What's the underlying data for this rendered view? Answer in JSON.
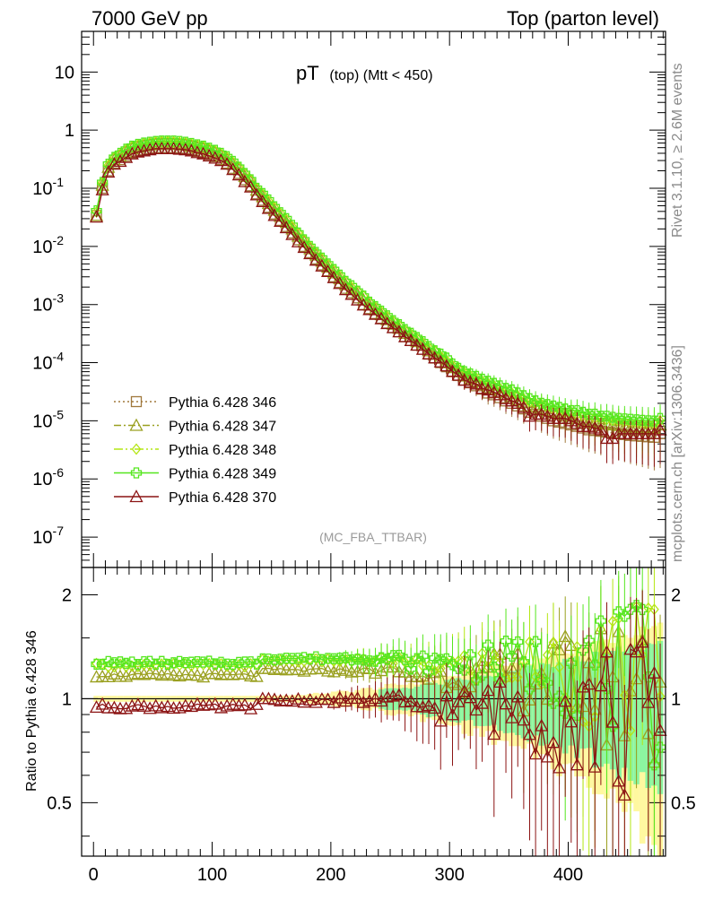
{
  "header": {
    "left": "7000 GeV pp",
    "right": "Top (parton level)"
  },
  "plot_title": {
    "main": "pT",
    "sub": "(top) (Mtt < 450)"
  },
  "analysis_tag": "(MC_FBA_TTBAR)",
  "side_labels": {
    "rivet": "Rivet 3.1.10, ≥ 2.6M events",
    "mcplots": "mcplots.cern.ch [arXiv:1306.3436]"
  },
  "chart_data": [
    {
      "type": "line",
      "panel": "main",
      "yscale": "log",
      "xlim": [
        -10,
        482
      ],
      "ylim": [
        3e-08,
        50
      ],
      "y_tick_labels": [
        "10",
        "1",
        "10^-1",
        "10^-2",
        "10^-3",
        "10^-4",
        "10^-5",
        "10^-6",
        "10^-7"
      ],
      "legend_position": "middle-left",
      "x": [
        2.5,
        7.5,
        12.5,
        17.5,
        22.5,
        27.5,
        32.5,
        37.5,
        42.5,
        47.5,
        52.5,
        57.5,
        62.5,
        67.5,
        72.5,
        77.5,
        82.5,
        87.5,
        92.5,
        97.5,
        102.5,
        107.5,
        112.5,
        117.5,
        122.5,
        127.5,
        132.5,
        137.5,
        142.5,
        147.5,
        152.5,
        157.5,
        162.5,
        167.5,
        172.5,
        177.5,
        182.5,
        187.5,
        192.5,
        197.5,
        202.5,
        207.5,
        212.5,
        217.5,
        222.5,
        227.5,
        232.5,
        237.5,
        242.5,
        247.5,
        252.5,
        257.5,
        262.5,
        267.5,
        272.5,
        277.5,
        282.5,
        287.5,
        292.5,
        297.5,
        302.5,
        307.5,
        312.5,
        317.5,
        322.5,
        327.5,
        332.5,
        337.5,
        342.5,
        347.5,
        352.5,
        357.5,
        362.5,
        367.5,
        372.5,
        377.5,
        382.5,
        387.5,
        392.5,
        397.5,
        402.5,
        407.5,
        412.5,
        417.5,
        422.5,
        427.5,
        432.5,
        437.5,
        442.5,
        447.5,
        452.5,
        457.5,
        462.5,
        467.5,
        472.5,
        477.5
      ],
      "series": [
        {
          "name": "Pythia 6.428 346",
          "color": "#a0783c",
          "dash": "2,3",
          "marker": "square",
          "values": [
            0.034,
            0.1,
            0.2,
            0.27,
            0.31,
            0.36,
            0.41,
            0.44,
            0.46,
            0.48,
            0.5,
            0.5,
            0.5,
            0.5,
            0.49,
            0.48,
            0.46,
            0.43,
            0.41,
            0.38,
            0.35,
            0.31,
            0.27,
            0.22,
            0.18,
            0.14,
            0.11,
            0.08,
            0.062,
            0.047,
            0.036,
            0.028,
            0.022,
            0.017,
            0.013,
            0.01,
            0.0078,
            0.0061,
            0.0048,
            0.0038,
            0.003,
            0.0024,
            0.0019,
            0.0016,
            0.0013,
            0.001,
            0.00085,
            0.0007,
            0.00058,
            0.00048,
            0.0004,
            0.00034,
            0.00028,
            0.00024,
            0.0002,
            0.00017,
            0.00014,
            0.00012,
            0.0001,
            8.5e-05,
            7e-05,
            6e-05,
            5e-05,
            4.5e-05,
            4e-05,
            3.5e-05,
            3e-05,
            2.8e-05,
            2.5e-05,
            2.2e-05,
            2e-05,
            1.8e-05,
            1.6e-05,
            1.4e-05,
            1.3e-05,
            1.2e-05,
            1.1e-05,
            1e-05,
            9.5e-06,
            9e-06,
            8.5e-06,
            8e-06,
            7.5e-06,
            7e-06,
            6.8e-06,
            6.6e-06,
            6.4e-06,
            6.2e-06,
            6e-06,
            5.8e-06,
            5.6e-06,
            5.5e-06,
            5.4e-06,
            5.3e-06,
            5.2e-06,
            6e-06
          ]
        },
        {
          "name": "Pythia 6.428 347",
          "color": "#9aa020",
          "dash": "8,3,2,3",
          "marker": "triangle",
          "values": [
            0.034,
            0.113,
            0.23,
            0.31,
            0.36,
            0.42,
            0.48,
            0.51,
            0.54,
            0.56,
            0.58,
            0.58,
            0.58,
            0.58,
            0.57,
            0.56,
            0.53,
            0.5,
            0.48,
            0.44,
            0.41,
            0.36,
            0.31,
            0.26,
            0.21,
            0.16,
            0.13,
            0.093,
            0.072,
            0.055,
            0.042,
            0.033,
            0.026,
            0.02,
            0.015,
            0.012,
            0.0091,
            0.0071,
            0.0056,
            0.0044,
            0.0035,
            0.0028,
            0.0022,
            0.0018,
            0.0015,
            0.0012,
            0.00098,
            0.00081,
            0.00067,
            0.00055,
            0.00046,
            0.00039,
            0.00032,
            0.00028,
            0.00023,
            0.0002,
            0.00016,
            0.00014,
            0.00012,
            0.0001,
            8.2e-05,
            7e-05,
            5.9e-05,
            5.3e-05,
            4.8e-05,
            4.2e-05,
            3.7e-05,
            3.5e-05,
            3.1e-05,
            2.8e-05,
            2.6e-05,
            2.3e-05,
            2.1e-05,
            1.8e-05,
            1.7e-05,
            1.6e-05,
            1.5e-05,
            1.4e-05,
            1.3e-05,
            1.2e-05,
            1.1e-05,
            1.1e-05,
            1e-05,
            9.5e-06,
            9.3e-06,
            9e-06,
            8.8e-06,
            8.5e-06,
            8.3e-06,
            8e-06,
            7.8e-06,
            7.7e-06,
            7.6e-06,
            7.5e-06,
            7.4e-06,
            8.5e-06
          ]
        },
        {
          "name": "Pythia 6.428 348",
          "color": "#b4e614",
          "dash": "10,3,2,3,2,3",
          "marker": "diamond",
          "values": [
            0.039,
            0.125,
            0.25,
            0.34,
            0.39,
            0.46,
            0.52,
            0.56,
            0.59,
            0.61,
            0.63,
            0.64,
            0.64,
            0.63,
            0.62,
            0.61,
            0.58,
            0.55,
            0.52,
            0.48,
            0.44,
            0.39,
            0.34,
            0.28,
            0.23,
            0.18,
            0.14,
            0.1,
            0.079,
            0.061,
            0.047,
            0.037,
            0.029,
            0.022,
            0.017,
            0.013,
            0.0099,
            0.0078,
            0.0062,
            0.0049,
            0.0039,
            0.0031,
            0.0025,
            0.002,
            0.0017,
            0.0014,
            0.0011,
            0.0009,
            0.00075,
            0.00062,
            0.00052,
            0.00044,
            0.00036,
            0.00031,
            0.00026,
            0.00022,
            0.00018,
            0.00016,
            0.00013,
            0.00011,
            9e-05,
            7.8e-05,
            6.7e-05,
            6e-05,
            5.4e-05,
            4.8e-05,
            4.4e-05,
            4e-05,
            3.6e-05,
            3.3e-05,
            3e-05,
            2.7e-05,
            2.4e-05,
            2.1e-05,
            2e-05,
            1.9e-05,
            1.7e-05,
            1.6e-05,
            1.5e-05,
            1.4e-05,
            1.4e-05,
            1.3e-05,
            1.2e-05,
            1.2e-05,
            1.1e-05,
            1.1e-05,
            1.05e-05,
            1e-05,
            9.8e-06,
            9.6e-06,
            9.4e-06,
            9.2e-06,
            9e-06,
            8.9e-06,
            8.8e-06,
            1e-05
          ]
        },
        {
          "name": "Pythia 6.428 349",
          "color": "#55e61e",
          "dash": "",
          "marker": "cross",
          "values": [
            0.041,
            0.126,
            0.26,
            0.34,
            0.4,
            0.47,
            0.53,
            0.57,
            0.6,
            0.62,
            0.64,
            0.65,
            0.65,
            0.65,
            0.64,
            0.62,
            0.59,
            0.56,
            0.53,
            0.49,
            0.45,
            0.4,
            0.35,
            0.29,
            0.23,
            0.18,
            0.14,
            0.1,
            0.081,
            0.063,
            0.048,
            0.038,
            0.03,
            0.023,
            0.017,
            0.013,
            0.01,
            0.0079,
            0.0063,
            0.005,
            0.004,
            0.0032,
            0.0025,
            0.0021,
            0.0017,
            0.0014,
            0.0011,
            0.00092,
            0.00077,
            0.00064,
            0.00053,
            0.00045,
            0.00037,
            0.00032,
            0.00027,
            0.00023,
            0.00019,
            0.00016,
            0.00014,
            0.00012,
            9.5e-05,
            8e-05,
            7e-05,
            6.4e-05,
            5.8e-05,
            5.2e-05,
            4.8e-05,
            4.4e-05,
            4e-05,
            3.6e-05,
            3.4e-05,
            3e-05,
            2.7e-05,
            2.4e-05,
            2.2e-05,
            2e-05,
            1.9e-05,
            1.8e-05,
            1.7e-05,
            1.6e-05,
            1.5e-05,
            1.5e-05,
            1.4e-05,
            1.3e-05,
            1.3e-05,
            1.2e-05,
            1.2e-05,
            1.15e-05,
            1.1e-05,
            1.08e-05,
            1.06e-05,
            1.04e-05,
            1.02e-05,
            1e-05,
            9.9e-06,
            1.1e-05
          ]
        },
        {
          "name": "Pythia 6.428 370",
          "color": "#8c1414",
          "dash": "",
          "marker": "triangle",
          "values": [
            0.032,
            0.094,
            0.19,
            0.26,
            0.29,
            0.34,
            0.39,
            0.42,
            0.44,
            0.46,
            0.48,
            0.48,
            0.48,
            0.48,
            0.47,
            0.46,
            0.44,
            0.41,
            0.39,
            0.36,
            0.33,
            0.3,
            0.26,
            0.21,
            0.17,
            0.13,
            0.105,
            0.077,
            0.059,
            0.045,
            0.034,
            0.027,
            0.021,
            0.016,
            0.012,
            0.0096,
            0.0075,
            0.0058,
            0.0046,
            0.0037,
            0.0029,
            0.0023,
            0.0018,
            0.0015,
            0.0012,
            0.00098,
            0.00082,
            0.00068,
            0.00057,
            0.00047,
            0.0004,
            0.00034,
            0.00028,
            0.00024,
            0.0002,
            0.00017,
            0.000142,
            0.000121,
            0.000103,
            8.8e-05,
            7.1e-05,
            6.1e-05,
            5e-05,
            4.6e-05,
            4.3e-05,
            3.6e-05,
            3.4e-05,
            3.1e-05,
            2.8e-05,
            2.4e-05,
            2.2e-05,
            2e-05,
            1.7e-05,
            1.2e-05,
            1.3e-05,
            1.3e-05,
            1.2e-05,
            1.1e-05,
            1.1e-05,
            1.1e-05,
            1e-05,
            9e-06,
            8e-06,
            8e-06,
            7.5e-06,
            7e-06,
            5e-06,
            5e-06,
            6e-06,
            6e-06,
            6e-06,
            6e-06,
            6e-06,
            6e-06,
            6e-06,
            7e-06
          ]
        }
      ]
    },
    {
      "type": "line",
      "panel": "ratio",
      "ylabel": "Ratio to Pythia 6.428 346",
      "yscale": "log",
      "xlim": [
        -10,
        482
      ],
      "ylim": [
        0.35,
        2.4
      ],
      "y_tick_labels": [
        "2",
        "1",
        "0.5"
      ],
      "x_tick_labels": [
        "0",
        "100",
        "200",
        "300",
        "400"
      ],
      "series": [
        {
          "name": "Pythia 6.428 347",
          "color": "#9aa020",
          "mean": 1.17
        },
        {
          "name": "Pythia 6.428 348",
          "color": "#b4e614",
          "mean": 1.25
        },
        {
          "name": "Pythia 6.428 349",
          "color": "#55e61e",
          "mean": 1.27
        },
        {
          "name": "Pythia 6.428 370",
          "color": "#8c1414",
          "mean": 0.95
        }
      ]
    }
  ]
}
